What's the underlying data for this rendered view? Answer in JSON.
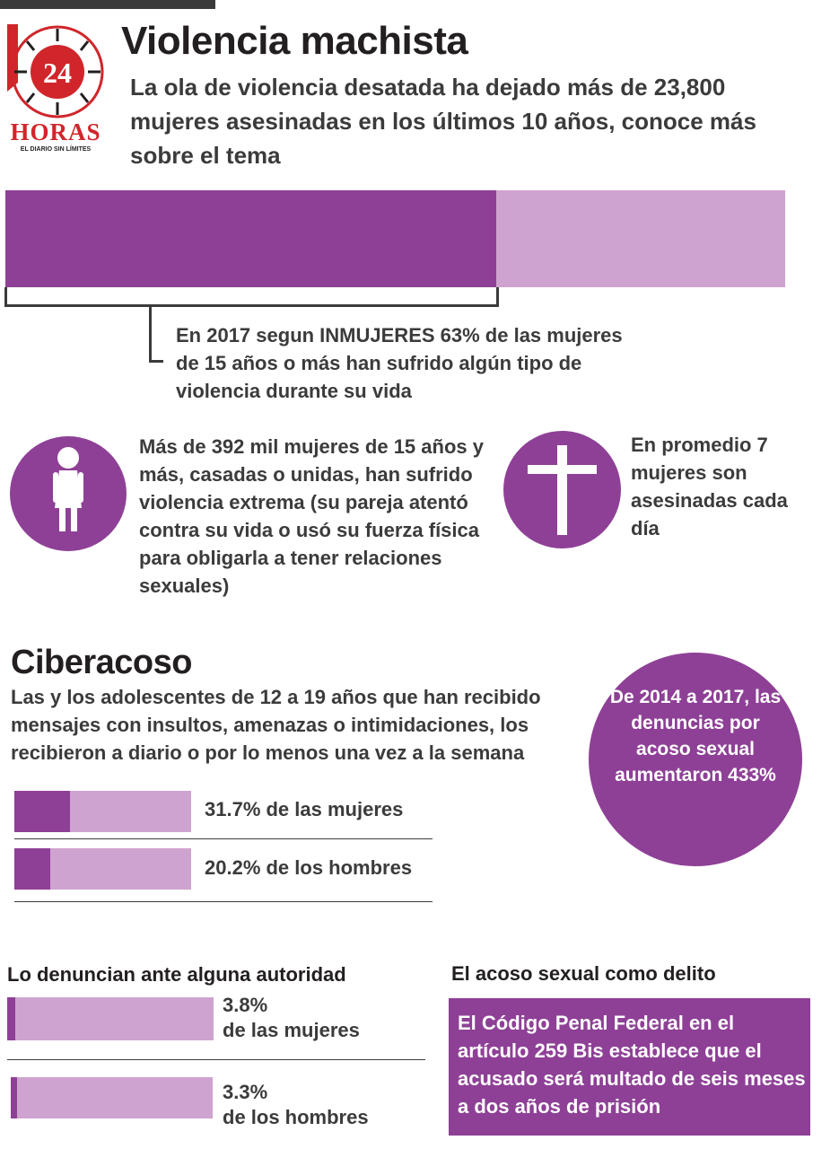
{
  "header": {
    "title": "Violencia machista",
    "subtitle": "La ola de violencia desatada ha dejado  más de 23,800 mujeres asesinadas en los últimos 10 años, conoce más sobre el tema"
  },
  "logo": {
    "number": "24",
    "brand": "HORAS",
    "tagline": "EL DIARIO SIN LÍMITES",
    "brand_color": "#d0262b"
  },
  "colors": {
    "dark_purple": "#8e4096",
    "light_purple": "#cfa3cf",
    "text": "#3b3b3b"
  },
  "stats": {
    "inmujeres_note": "En 2017 segun INMUJERES 63% de las mujeres de 15 años o más han sufrido algún tipo de violencia durante su vida",
    "extreme_violence": "Más de 392 mil mujeres de 15 años y más, casadas o unidas, han sufrido violencia extrema (su pareja atentó contra su vida o usó su fuerza física para obligarla a tener relaciones sexuales)",
    "daily_murders": "En promedio 7 mujeres son asesinadas cada día",
    "woman_icon": "woman-icon",
    "cross_icon": "cross-icon"
  },
  "ciberacoso": {
    "heading": "Ciberacoso",
    "description": "Las y los adolescentes de 12 a 19 años que han recibido mensajes con insultos, amenazas o intimidaciones, los recibieron a diario o por lo menos una vez a la semana",
    "bars": [
      {
        "label": "31.7% de las mujeres"
      },
      {
        "label": "20.2% de los hombres"
      }
    ]
  },
  "denuncias_circle": {
    "text": "De 2014 a 2017, las denuncias por acoso sexual aumentaron 433%"
  },
  "denuncian": {
    "heading": "Lo denuncian ante alguna autoridad",
    "bars": [
      {
        "value_label": "3.8%",
        "group_label": "de las mujeres"
      },
      {
        "value_label": "3.3%",
        "group_label": "de los hombres"
      }
    ]
  },
  "delito": {
    "heading": "El acoso sexual como delito",
    "text": "El Código Penal Federal en el artículo 259 Bis establece que el acusado será multado de seis meses a dos años de prisión"
  },
  "chart_data": [
    {
      "type": "bar",
      "orientation": "horizontal",
      "categories": [
        "mujeres de 15 años o más"
      ],
      "values": [
        63
      ],
      "unit": "%",
      "xlim": [
        0,
        100
      ]
    },
    {
      "type": "bar",
      "orientation": "horizontal",
      "title": "Ciberacoso",
      "categories": [
        "de las mujeres",
        "de los hombres"
      ],
      "values": [
        31.7,
        20.2
      ],
      "unit": "%",
      "xlim": [
        0,
        100
      ]
    },
    {
      "type": "bar",
      "orientation": "horizontal",
      "title": "Lo denuncian ante alguna autoridad",
      "categories": [
        "de las mujeres",
        "de los hombres"
      ],
      "values": [
        3.8,
        3.3
      ],
      "unit": "%",
      "xlim": [
        0,
        100
      ]
    }
  ]
}
